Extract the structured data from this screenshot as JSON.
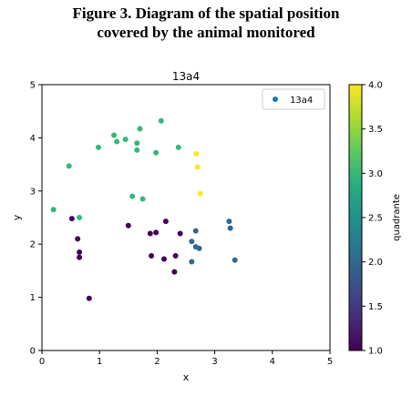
{
  "figure_caption": {
    "line1": "Figure 3. Diagram of the spatial position",
    "line2": "covered by the animal monitored"
  },
  "chart_data": {
    "type": "scatter",
    "title": "13a4",
    "xlabel": "x",
    "ylabel": "y",
    "xlim": [
      0,
      5
    ],
    "ylim": [
      0,
      5
    ],
    "xticks": [
      "0",
      "1",
      "2",
      "3",
      "4",
      "5"
    ],
    "yticks": [
      "0",
      "1",
      "2",
      "3",
      "4",
      "5"
    ],
    "grid": false,
    "legend": {
      "position": "top-right",
      "entries": [
        "13a4"
      ]
    },
    "colorbar": {
      "label": "quadrante",
      "range": [
        1.0,
        4.0
      ],
      "ticks": [
        "1.0",
        "1.5",
        "2.0",
        "2.5",
        "3.0",
        "3.5",
        "4.0"
      ],
      "colormap": "viridis"
    },
    "points": [
      {
        "x": 0.2,
        "y": 2.65,
        "c": 3
      },
      {
        "x": 0.47,
        "y": 3.47,
        "c": 3
      },
      {
        "x": 0.65,
        "y": 2.5,
        "c": 3
      },
      {
        "x": 0.98,
        "y": 3.82,
        "c": 3
      },
      {
        "x": 1.25,
        "y": 4.05,
        "c": 3
      },
      {
        "x": 1.3,
        "y": 3.93,
        "c": 3
      },
      {
        "x": 1.45,
        "y": 3.97,
        "c": 3
      },
      {
        "x": 1.65,
        "y": 3.9,
        "c": 3
      },
      {
        "x": 1.65,
        "y": 3.77,
        "c": 3
      },
      {
        "x": 1.7,
        "y": 4.17,
        "c": 3
      },
      {
        "x": 1.98,
        "y": 3.72,
        "c": 3
      },
      {
        "x": 2.07,
        "y": 4.32,
        "c": 3
      },
      {
        "x": 2.37,
        "y": 3.82,
        "c": 3
      },
      {
        "x": 1.57,
        "y": 2.9,
        "c": 3
      },
      {
        "x": 1.75,
        "y": 2.85,
        "c": 3
      },
      {
        "x": 2.68,
        "y": 3.7,
        "c": 4
      },
      {
        "x": 2.7,
        "y": 3.45,
        "c": 4
      },
      {
        "x": 2.75,
        "y": 2.95,
        "c": 4
      },
      {
        "x": 0.52,
        "y": 2.48,
        "c": 1
      },
      {
        "x": 0.62,
        "y": 2.1,
        "c": 1
      },
      {
        "x": 0.65,
        "y": 1.85,
        "c": 1
      },
      {
        "x": 0.65,
        "y": 1.75,
        "c": 1
      },
      {
        "x": 0.82,
        "y": 0.98,
        "c": 1
      },
      {
        "x": 1.5,
        "y": 2.35,
        "c": 1
      },
      {
        "x": 1.88,
        "y": 2.2,
        "c": 1
      },
      {
        "x": 1.98,
        "y": 2.22,
        "c": 1
      },
      {
        "x": 2.15,
        "y": 2.43,
        "c": 1
      },
      {
        "x": 1.9,
        "y": 1.78,
        "c": 1
      },
      {
        "x": 2.12,
        "y": 1.72,
        "c": 1
      },
      {
        "x": 2.32,
        "y": 1.78,
        "c": 1
      },
      {
        "x": 2.3,
        "y": 1.48,
        "c": 1
      },
      {
        "x": 2.4,
        "y": 2.2,
        "c": 1
      },
      {
        "x": 2.67,
        "y": 2.25,
        "c": 2
      },
      {
        "x": 2.6,
        "y": 2.05,
        "c": 2
      },
      {
        "x": 2.67,
        "y": 1.95,
        "c": 2
      },
      {
        "x": 2.73,
        "y": 1.92,
        "c": 2
      },
      {
        "x": 2.6,
        "y": 1.67,
        "c": 2
      },
      {
        "x": 3.25,
        "y": 2.43,
        "c": 2
      },
      {
        "x": 3.27,
        "y": 2.3,
        "c": 2
      },
      {
        "x": 3.35,
        "y": 1.7,
        "c": 2
      }
    ]
  },
  "colors": {
    "legend_marker": "#1f77b4",
    "c1": "#440154",
    "c2": "#31688e",
    "c3": "#35b779",
    "c4": "#fde725"
  }
}
